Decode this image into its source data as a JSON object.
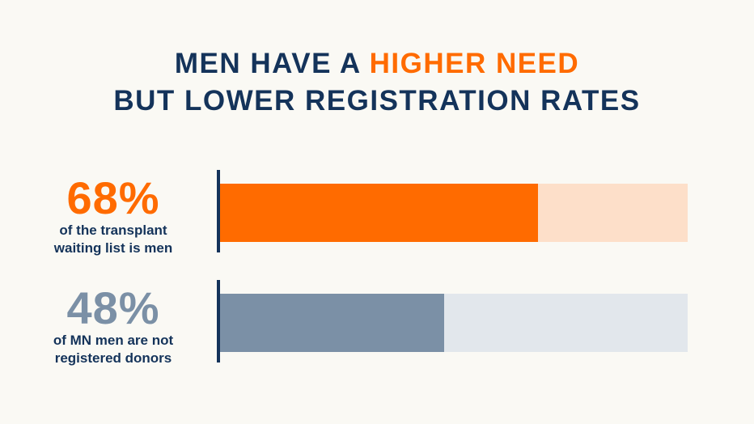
{
  "title": {
    "line1_prefix": "MEN HAVE A ",
    "line1_highlight": "HIGHER NEED",
    "line2": "BUT LOWER REGISTRATION RATES"
  },
  "colors": {
    "navy": "#14335a",
    "orange": "#ff6b00",
    "orange_light": "#fddfc9",
    "slate": "#7b90a6",
    "slate_light": "#e2e7ec"
  },
  "chart_data": {
    "type": "bar",
    "orientation": "horizontal",
    "xlim": [
      0,
      100
    ],
    "bars": [
      {
        "value": 68,
        "value_label": "68%",
        "description_line1": "of the transplant",
        "description_line2": "waiting list is men",
        "fill_color": "#ff6b00",
        "track_color": "#fddfc9"
      },
      {
        "value": 48,
        "value_label": "48%",
        "description_line1": "of MN men are not",
        "description_line2": "registered donors",
        "fill_color": "#7b90a6",
        "track_color": "#e2e7ec"
      }
    ]
  }
}
